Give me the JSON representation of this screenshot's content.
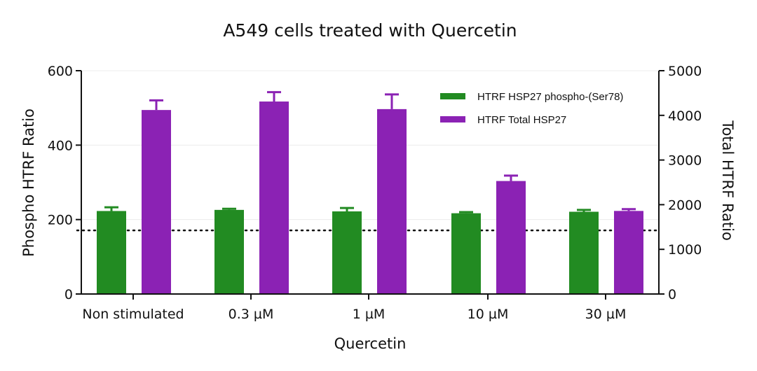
{
  "chart_data": {
    "type": "bar",
    "title": "A549 cells treated with Quercetin",
    "xlabel": "Quercetin",
    "ylabel_left": "Phospho HTRF Ratio",
    "ylabel_right": "Total HTRF Ratio",
    "categories": [
      "Non stimulated",
      "0.3 µM",
      "1 µM",
      "10 µM",
      "30 µM"
    ],
    "ylim_left": [
      0,
      600
    ],
    "yticks_left": [
      "0",
      "200",
      "400",
      "600"
    ],
    "ylim_right": [
      0,
      5000
    ],
    "yticks_right": [
      "0",
      "1000",
      "2000",
      "3000",
      "4000",
      "5000"
    ],
    "reference_line_left": 171,
    "grid": false,
    "legend_position": "top-right",
    "series": [
      {
        "name": "HTRF HSP27 phospho-(Ser78)",
        "axis": "left",
        "color": "#228B22",
        "values": [
          223,
          226,
          222,
          217,
          221
        ],
        "errors": [
          10,
          3,
          9,
          3,
          5
        ]
      },
      {
        "name": "HTRF Total HSP27",
        "axis": "right",
        "color": "#8B22B4",
        "values": [
          4120,
          4310,
          4140,
          2530,
          1860
        ],
        "errors": [
          215,
          210,
          330,
          120,
          40
        ]
      }
    ]
  }
}
